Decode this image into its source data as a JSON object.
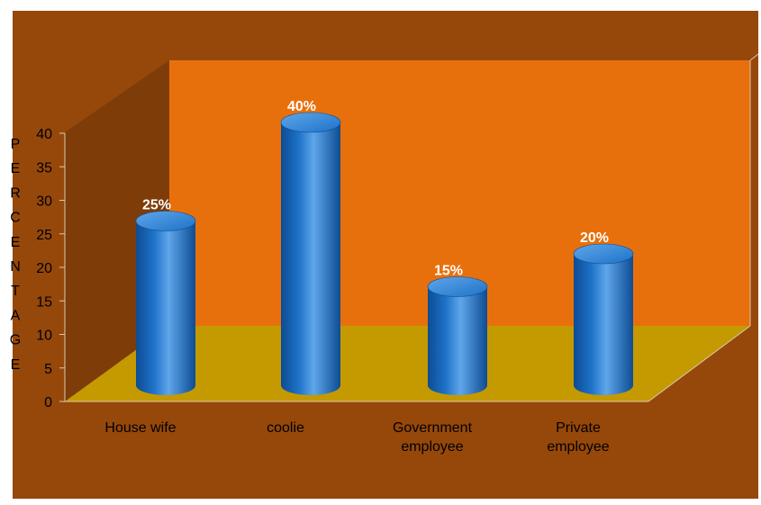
{
  "chart_data": {
    "type": "bar",
    "categories": [
      "House wife",
      "coolie",
      "Government employee",
      "Private employee"
    ],
    "category_lines": [
      [
        "House wife"
      ],
      [
        "coolie"
      ],
      [
        "Government",
        "employee"
      ],
      [
        "Private",
        "employee"
      ]
    ],
    "values": [
      25,
      40,
      15,
      20
    ],
    "data_labels": [
      "25%",
      "40%",
      "15%",
      "20%"
    ],
    "ylabel": "PERCENTAGE",
    "ylabel_letters": [
      "P",
      "E",
      "R",
      "C",
      "E",
      "N",
      "T",
      "A",
      "G",
      "E"
    ],
    "ylim": [
      0,
      40
    ],
    "yticks": [
      0,
      5,
      10,
      15,
      20,
      25,
      30,
      35,
      40
    ],
    "style": "3d-cylinder",
    "colors": {
      "chart_area": "#96480A",
      "back_wall": "#E8700C",
      "floor": "#C49A00",
      "bar": "#1E72C8",
      "bar_dark": "#0D4C93",
      "bar_light": "#5FA6EA",
      "data_label": "#ffffff",
      "axis_text": "#000000"
    }
  }
}
